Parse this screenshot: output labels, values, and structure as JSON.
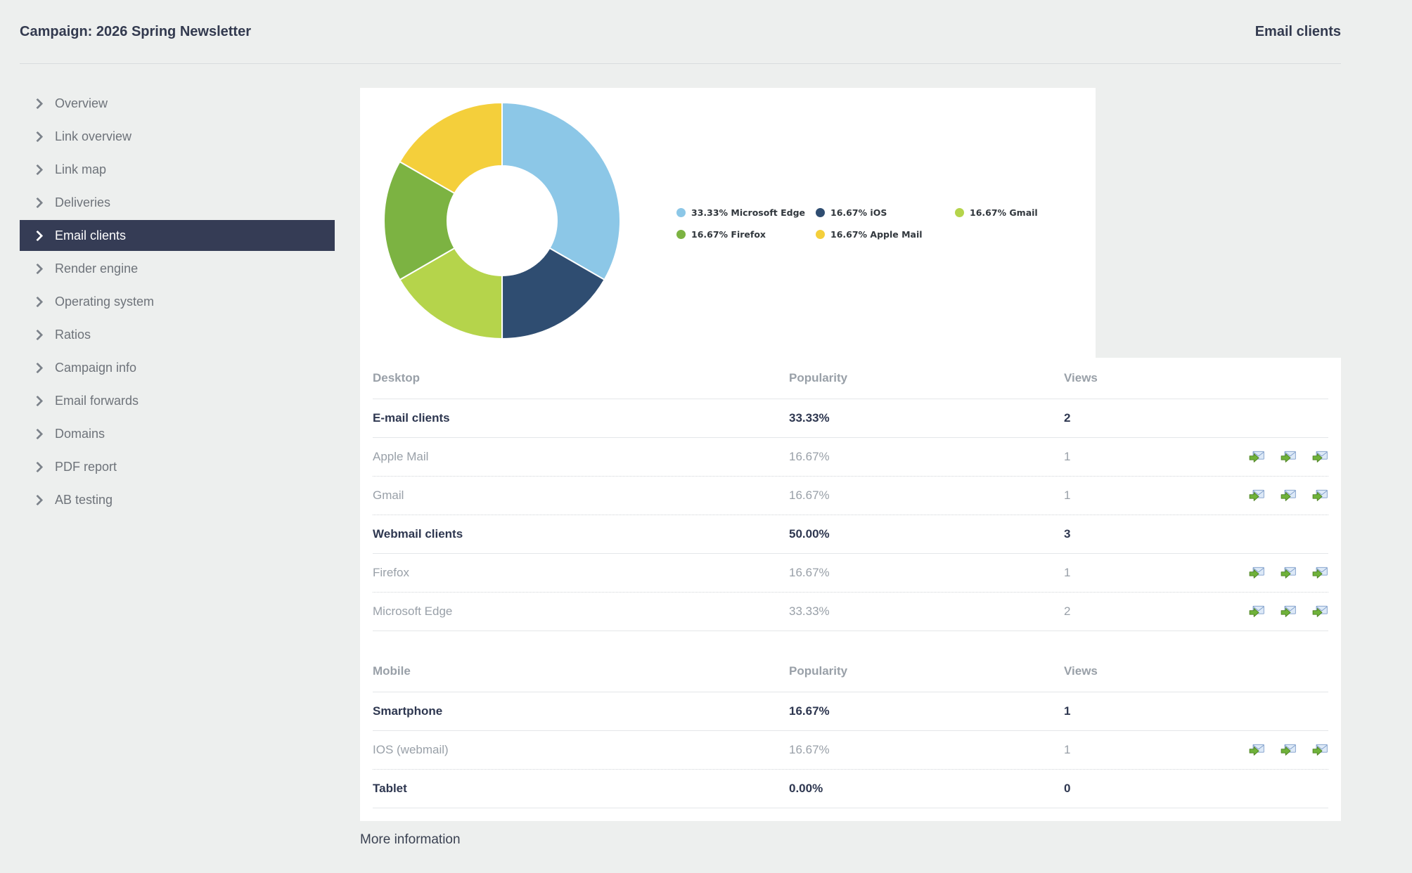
{
  "header": {
    "campaign_label": "Campaign: 2026 Spring Newsletter",
    "section_label": "Email clients"
  },
  "sidebar": {
    "items": [
      {
        "label": "Overview",
        "active": false
      },
      {
        "label": "Link overview",
        "active": false
      },
      {
        "label": "Link map",
        "active": false
      },
      {
        "label": "Deliveries",
        "active": false
      },
      {
        "label": "Email clients",
        "active": true
      },
      {
        "label": "Render engine",
        "active": false
      },
      {
        "label": "Operating system",
        "active": false
      },
      {
        "label": "Ratios",
        "active": false
      },
      {
        "label": "Campaign info",
        "active": false
      },
      {
        "label": "Email forwards",
        "active": false
      },
      {
        "label": "Domains",
        "active": false
      },
      {
        "label": "PDF report",
        "active": false
      },
      {
        "label": "AB testing",
        "active": false
      }
    ]
  },
  "chart_data": {
    "type": "pie",
    "subtype": "donut",
    "legend_position": "right",
    "slices": [
      {
        "label": "Microsoft Edge",
        "value": 33.33,
        "legend_label": "33.33% Microsoft Edge",
        "color": "#8cc7e7"
      },
      {
        "label": "iOS",
        "value": 16.67,
        "legend_label": "16.67% iOS",
        "color": "#2f4d71"
      },
      {
        "label": "Gmail",
        "value": 16.67,
        "legend_label": "16.67% Gmail",
        "color": "#b5d44b"
      },
      {
        "label": "Firefox",
        "value": 16.67,
        "legend_label": "16.67% Firefox",
        "color": "#7cb342"
      },
      {
        "label": "Apple Mail",
        "value": 16.67,
        "legend_label": "16.67% Apple Mail",
        "color": "#f4cf3b"
      }
    ],
    "slice_order": "clockwise-from-top"
  },
  "tables": [
    {
      "title": "Desktop",
      "columns": [
        "Popularity",
        "Views"
      ],
      "rows": [
        {
          "label": "E-mail clients",
          "popularity": "33.33%",
          "views": "2",
          "bold": true,
          "sep": "solid",
          "icons": false
        },
        {
          "label": "Apple Mail",
          "popularity": "16.67%",
          "views": "1",
          "bold": false,
          "sep": "dashed",
          "icons": true
        },
        {
          "label": "Gmail",
          "popularity": "16.67%",
          "views": "1",
          "bold": false,
          "sep": "dashed",
          "icons": true
        },
        {
          "label": "Webmail clients",
          "popularity": "50.00%",
          "views": "3",
          "bold": true,
          "sep": "solid",
          "icons": false
        },
        {
          "label": "Firefox",
          "popularity": "16.67%",
          "views": "1",
          "bold": false,
          "sep": "dashed",
          "icons": true
        },
        {
          "label": "Microsoft Edge",
          "popularity": "33.33%",
          "views": "2",
          "bold": false,
          "sep": "solid",
          "icons": true
        }
      ]
    },
    {
      "title": "Mobile",
      "columns": [
        "Popularity",
        "Views"
      ],
      "rows": [
        {
          "label": "Smartphone",
          "popularity": "16.67%",
          "views": "1",
          "bold": true,
          "sep": "solid",
          "icons": false
        },
        {
          "label": "IOS (webmail)",
          "popularity": "16.67%",
          "views": "1",
          "bold": false,
          "sep": "dashed",
          "icons": true
        },
        {
          "label": "Tablet",
          "popularity": "0.00%",
          "views": "0",
          "bold": true,
          "sep": "solid",
          "icons": false
        }
      ]
    }
  ],
  "footer": {
    "more_info_label": "More information"
  },
  "theme": {
    "active_item_bg": "#353c55",
    "card_bg": "#ffffff",
    "page_bg": "#edefee"
  }
}
